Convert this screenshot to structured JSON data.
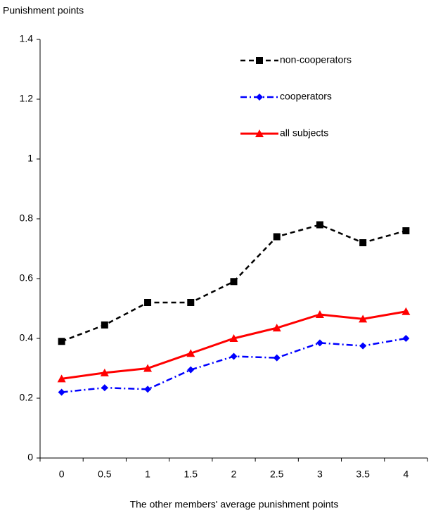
{
  "chart_data": {
    "type": "line",
    "y_label": "Punishment points",
    "x_label": "The other members' average punishment points",
    "categories": [
      "0",
      "0.5",
      "1",
      "1.5",
      "2",
      "2.5",
      "3",
      "3.5",
      "4"
    ],
    "ylim": [
      0,
      1.4
    ],
    "yticks": [
      0,
      0.2,
      0.4,
      0.6,
      0.8,
      1,
      1.2,
      1.4
    ],
    "legend": "top-right",
    "series": [
      {
        "name": "non-cooperators",
        "color": "#000000",
        "dash": "dashed",
        "marker": "square",
        "values": [
          0.39,
          0.445,
          0.52,
          0.52,
          0.59,
          0.74,
          0.78,
          0.72,
          0.76
        ]
      },
      {
        "name": "cooperators",
        "color": "#0000ff",
        "dash": "dash-dot",
        "marker": "diamond",
        "values": [
          0.22,
          0.235,
          0.23,
          0.295,
          0.34,
          0.335,
          0.385,
          0.375,
          0.4
        ]
      },
      {
        "name": "all subjects",
        "color": "#ff0000",
        "dash": "solid",
        "marker": "triangle",
        "values": [
          0.265,
          0.285,
          0.3,
          0.35,
          0.4,
          0.435,
          0.48,
          0.465,
          0.49
        ]
      }
    ]
  }
}
